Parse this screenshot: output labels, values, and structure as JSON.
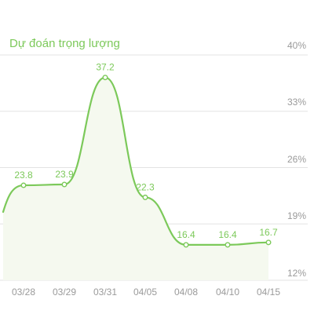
{
  "colors": {
    "accent": "#7cc95a",
    "fill": "#f5f9ef",
    "grid": "#e3e3e3",
    "axis_text": "#9a9a9a"
  },
  "chart_data": {
    "type": "area",
    "title": "Dự đoán trọng lượng",
    "xlabel": "",
    "ylabel": "",
    "categories": [
      "03/28",
      "03/29",
      "03/31",
      "04/05",
      "04/08",
      "04/10",
      "04/15"
    ],
    "values": [
      23.8,
      23.9,
      37.2,
      22.3,
      16.4,
      16.4,
      16.7
    ],
    "y_tick_labels": [
      "40%",
      "33%",
      "26%",
      "19%",
      "12%"
    ],
    "y_tick_values": [
      40,
      33,
      26,
      19,
      12
    ],
    "ylim": [
      12,
      40
    ],
    "grid": true,
    "smooth": true,
    "legend": "none"
  }
}
